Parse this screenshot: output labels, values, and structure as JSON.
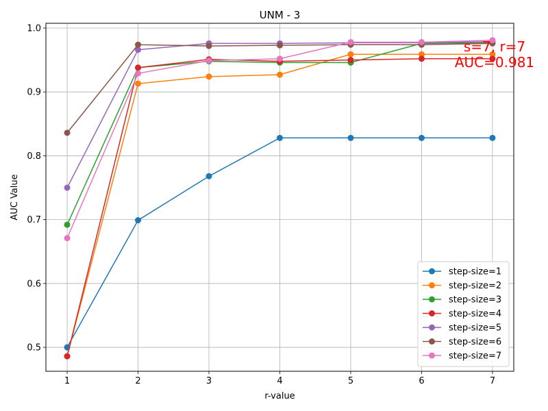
{
  "chart_data": {
    "type": "line",
    "title": "UNM - 3",
    "xlabel": "r-value",
    "ylabel": "AUC Value",
    "x": [
      1,
      2,
      3,
      4,
      5,
      6,
      7
    ],
    "xticks": [
      1,
      2,
      3,
      4,
      5,
      6,
      7
    ],
    "xtick_labels": [
      "1",
      "2",
      "3",
      "4",
      "5",
      "6",
      "7"
    ],
    "yticks": [
      0.5,
      0.6,
      0.7,
      0.8,
      0.9,
      1.0
    ],
    "ytick_labels": [
      "0.5",
      "0.6",
      "0.7",
      "0.8",
      "0.9",
      "1.0"
    ],
    "xlim": [
      0.7,
      7.3
    ],
    "ylim": [
      0.4625,
      1.0075
    ],
    "grid": true,
    "legend_position": "lower-right",
    "series": [
      {
        "name": "step-size=1",
        "color": "#1f77b4",
        "values": [
          0.5,
          0.699,
          0.768,
          0.828,
          0.828,
          0.828,
          0.828
        ]
      },
      {
        "name": "step-size=2",
        "color": "#ff7f0e",
        "values": [
          0.486,
          0.913,
          0.924,
          0.927,
          0.959,
          0.959,
          0.959
        ]
      },
      {
        "name": "step-size=3",
        "color": "#2ca02c",
        "values": [
          0.692,
          0.938,
          0.948,
          0.946,
          0.946,
          0.976,
          0.977
        ]
      },
      {
        "name": "step-size=4",
        "color": "#d62728",
        "values": [
          0.486,
          0.938,
          0.951,
          0.948,
          0.95,
          0.952,
          0.952
        ]
      },
      {
        "name": "step-size=5",
        "color": "#9467bd",
        "values": [
          0.75,
          0.966,
          0.976,
          0.976,
          0.977,
          0.977,
          0.979
        ]
      },
      {
        "name": "step-size=6",
        "color": "#8c564b",
        "values": [
          0.836,
          0.974,
          0.972,
          0.973,
          0.974,
          0.974,
          0.976
        ]
      },
      {
        "name": "step-size=7",
        "color": "#e377c2",
        "values": [
          0.671,
          0.929,
          0.949,
          0.952,
          0.978,
          0.978,
          0.981
        ]
      }
    ],
    "annotation": {
      "line1": "s=7, r=7",
      "line2": "AUC=0.981",
      "color": "#ff0000",
      "x": 7,
      "y": 0.981
    }
  }
}
